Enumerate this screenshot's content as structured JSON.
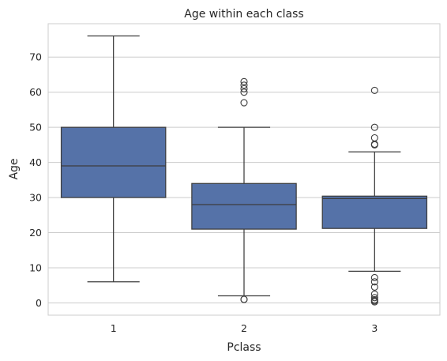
{
  "chart_data": {
    "type": "box",
    "title": "Age within each class",
    "xlabel": "Pclass",
    "ylabel": "Age",
    "categories": [
      "1",
      "2",
      "3"
    ],
    "y_ticks": [
      0,
      10,
      20,
      30,
      40,
      50,
      60,
      70
    ],
    "ylim": [
      -3.5,
      79.5
    ],
    "grid": "horizontal",
    "box_color": "#5572a8",
    "line_color": "#3d3d3d",
    "boxes": [
      {
        "category": "1",
        "whisker_low": 6,
        "q1": 30,
        "median": 39,
        "q3": 50,
        "whisker_high": 76,
        "outliers": []
      },
      {
        "category": "2",
        "whisker_low": 2,
        "q1": 21,
        "median": 28,
        "q3": 34,
        "whisker_high": 50,
        "outliers": [
          1,
          1,
          57,
          60,
          61,
          62,
          63
        ]
      },
      {
        "category": "3",
        "whisker_low": 9,
        "q1": 21.2,
        "median": 29.7,
        "q3": 30.4,
        "whisker_high": 43,
        "outliers": [
          0.3,
          0.6,
          0.9,
          1.5,
          2.5,
          4.5,
          6,
          7.2,
          45,
          45.2,
          47,
          50,
          60.5
        ]
      }
    ]
  }
}
